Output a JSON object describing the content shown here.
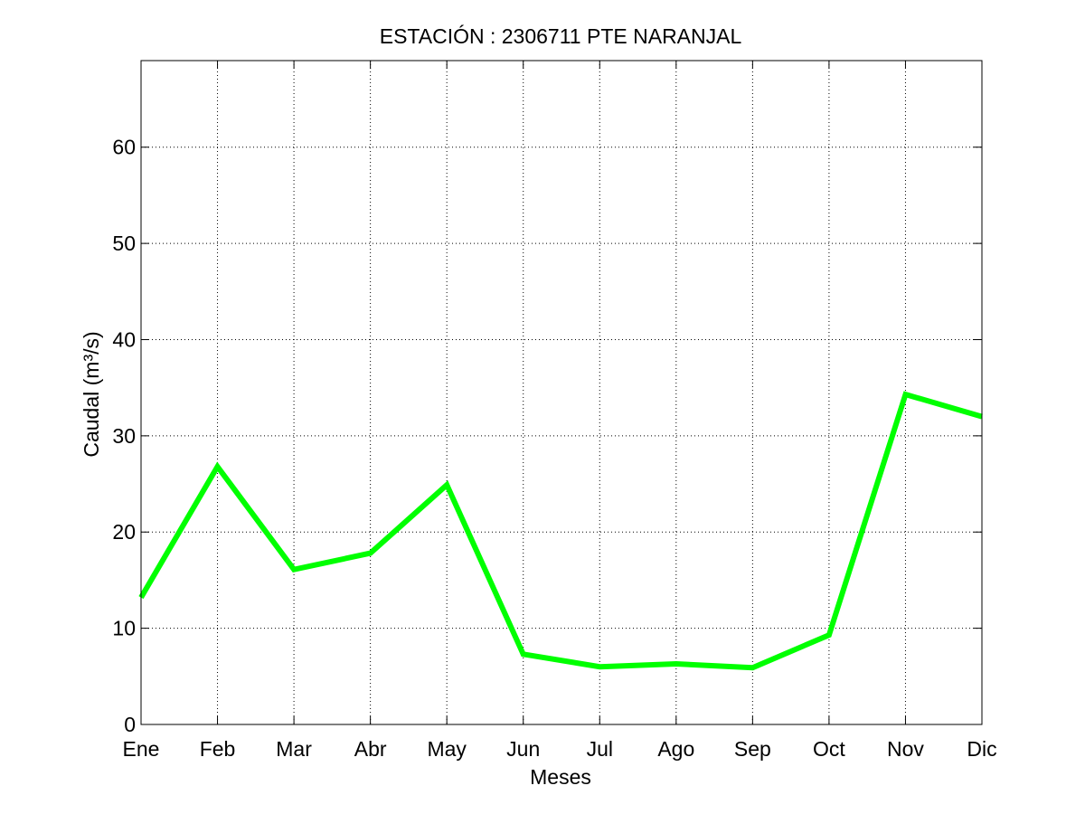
{
  "chart_data": {
    "type": "line",
    "title": "ESTACIÓN :  2306711  PTE NARANJAL",
    "xlabel": "Meses",
    "ylabel": "Caudal (m³/s)",
    "categories": [
      "Ene",
      "Feb",
      "Mar",
      "Abr",
      "May",
      "Jun",
      "Jul",
      "Ago",
      "Sep",
      "Oct",
      "Nov",
      "Dic"
    ],
    "series": [
      {
        "values": [
          13.2,
          26.8,
          16.1,
          17.8,
          24.9,
          7.3,
          6.0,
          6.3,
          5.9,
          9.3,
          34.3,
          32.0
        ],
        "color": "#00ff00"
      }
    ],
    "ylim": [
      0,
      69
    ],
    "yticks": [
      0,
      10,
      20,
      30,
      40,
      50,
      60
    ],
    "grid": true
  }
}
